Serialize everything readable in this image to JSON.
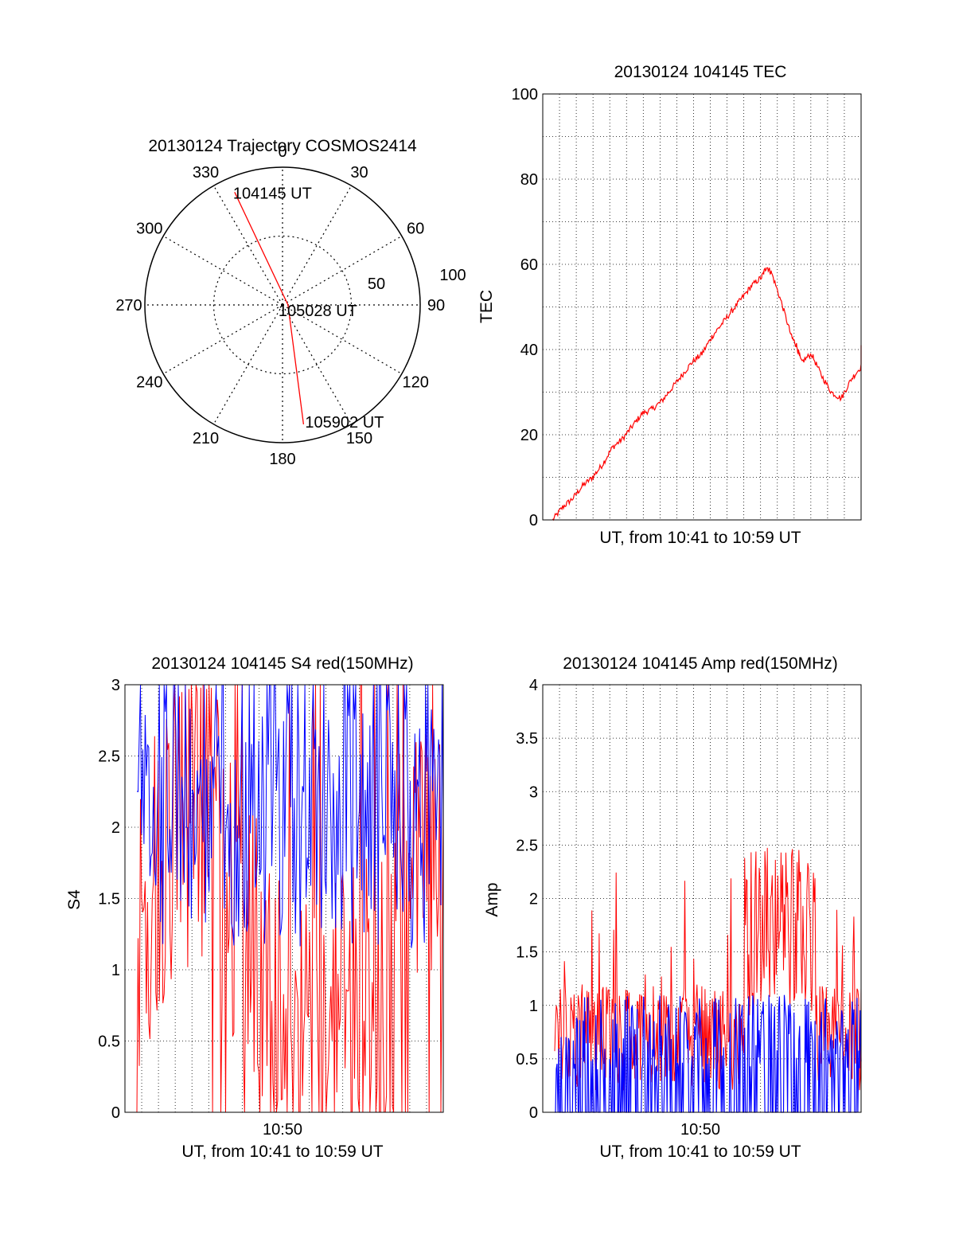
{
  "chart_data": [
    {
      "type": "polar",
      "title": "20130124 Trajectory COSMOS2414",
      "azimuth_labels": [
        "0",
        "30",
        "60",
        "90",
        "120",
        "150",
        "180",
        "210",
        "240",
        "270",
        "300",
        "330"
      ],
      "radius_labels": [
        "50",
        "100"
      ],
      "rlim": [
        0,
        100
      ],
      "grid": true,
      "trajectory": {
        "color": "#ff0000",
        "points": [
          {
            "az": 337,
            "r": 89,
            "label": "104145 UT"
          },
          {
            "az": 90,
            "r": 4,
            "label": "105028 UT"
          },
          {
            "az": 170,
            "r": 88,
            "label": "105902 UT"
          }
        ]
      }
    },
    {
      "type": "line",
      "title": "20130124 104145 TEC",
      "xlabel": "UT, from 10:41 to 10:59 UT",
      "ylabel": "TEC",
      "ylim": [
        0,
        100
      ],
      "yticks": [
        "0",
        "20",
        "40",
        "60",
        "80",
        "100"
      ],
      "xlim_min": [
        10.68,
        11.0
      ],
      "grid": true,
      "series": [
        {
          "color": "#ff0000",
          "points": [
            [
              10.69,
              0
            ],
            [
              10.7,
              3
            ],
            [
              10.71,
              5
            ],
            [
              10.72,
              8
            ],
            [
              10.73,
              10
            ],
            [
              10.74,
              13
            ],
            [
              10.75,
              17
            ],
            [
              10.76,
              19
            ],
            [
              10.77,
              22
            ],
            [
              10.78,
              25
            ],
            [
              10.79,
              26
            ],
            [
              10.8,
              28
            ],
            [
              10.81,
              31
            ],
            [
              10.82,
              34
            ],
            [
              10.83,
              37
            ],
            [
              10.84,
              39
            ],
            [
              10.85,
              43
            ],
            [
              10.86,
              46
            ],
            [
              10.87,
              49
            ],
            [
              10.88,
              52
            ],
            [
              10.89,
              55
            ],
            [
              10.9,
              57
            ],
            [
              10.905,
              59.5
            ],
            [
              10.91,
              58
            ],
            [
              10.92,
              51
            ],
            [
              10.93,
              43
            ],
            [
              10.935,
              41
            ],
            [
              10.94,
              37
            ],
            [
              10.95,
              39
            ],
            [
              10.96,
              34
            ],
            [
              10.97,
              30
            ],
            [
              10.98,
              28.5
            ],
            [
              10.99,
              33
            ],
            [
              11.0,
              36
            ],
            [
              11.01,
              41
            ]
          ]
        }
      ]
    },
    {
      "type": "line",
      "title": "20130124 104145 S4 red(150MHz)",
      "xlabel": "UT, from 10:41 to 10:59 UT",
      "ylabel": "S4",
      "ylim": [
        0,
        3
      ],
      "yticks": [
        "0",
        "0.5",
        "1",
        "1.5",
        "2",
        "2.5",
        "3"
      ],
      "xticks": [
        {
          "value": 10.833,
          "label": "10:50"
        }
      ],
      "xlim_hours": [
        10.68,
        11.0
      ],
      "grid": true,
      "series": [
        {
          "color": "#ff0000",
          "description_values": "high-variance noise, mostly 0.2–3"
        },
        {
          "color": "#0000ff",
          "description_values": "high-variance noise, mostly 1.2–3"
        }
      ]
    },
    {
      "type": "line",
      "title": "20130124 104145 Amp red(150MHz)",
      "xlabel": "UT, from 10:41 to 10:59 UT",
      "ylabel": "Amp",
      "ylim": [
        0,
        4
      ],
      "yticks": [
        "0",
        "0.5",
        "1",
        "1.5",
        "2",
        "2.5",
        "3",
        "3.5",
        "4"
      ],
      "xticks": [
        {
          "value": 10.833,
          "label": "10:50"
        }
      ],
      "xlim_hours": [
        10.68,
        11.0
      ],
      "grid": true,
      "series": [
        {
          "color": "#ff0000"
        },
        {
          "color": "#0000ff"
        }
      ]
    }
  ]
}
